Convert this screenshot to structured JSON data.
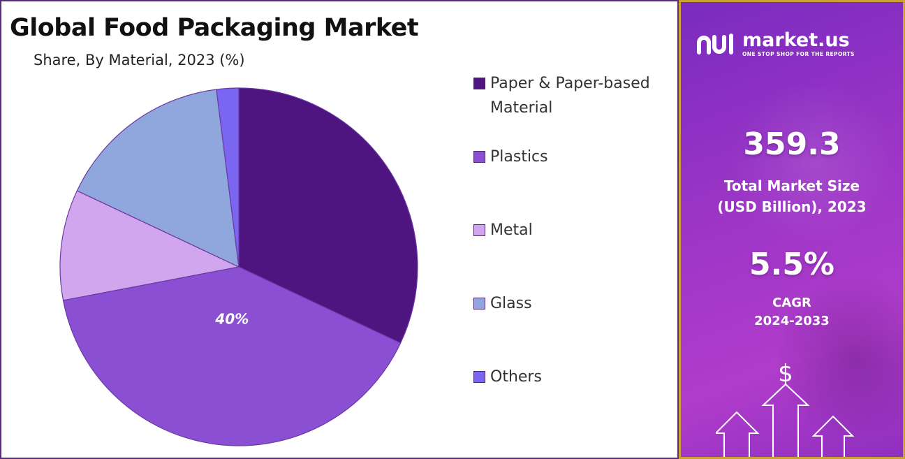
{
  "chart_data": {
    "type": "pie",
    "title": "Global Food Packaging Market",
    "subtitle": "Share, By Material, 2023 (%)",
    "slices": [
      {
        "label": "Paper & Paper-based Material",
        "value": 32,
        "color": "#4e1480"
      },
      {
        "label": "Plastics",
        "value": 40,
        "color": "#8b4fd3",
        "data_label": "40%"
      },
      {
        "label": "Metal",
        "value": 10,
        "color": "#d2a6ee"
      },
      {
        "label": "Glass",
        "value": 16,
        "color": "#8fa7dc"
      },
      {
        "label": "Others",
        "value": 2,
        "color": "#7a66f0"
      }
    ],
    "legend_position": "right"
  },
  "brand": {
    "name": "market.us",
    "tagline": "ONE STOP SHOP FOR THE REPORTS"
  },
  "stats": {
    "market_size_value": "359.3",
    "market_size_label_line1": "Total Market Size",
    "market_size_label_line2": "(USD Billion), 2023",
    "cagr_value": "5.5%",
    "cagr_label_line1": "CAGR",
    "cagr_label_line2": "2024-2033"
  },
  "decor": {
    "dollar_symbol": "$"
  }
}
